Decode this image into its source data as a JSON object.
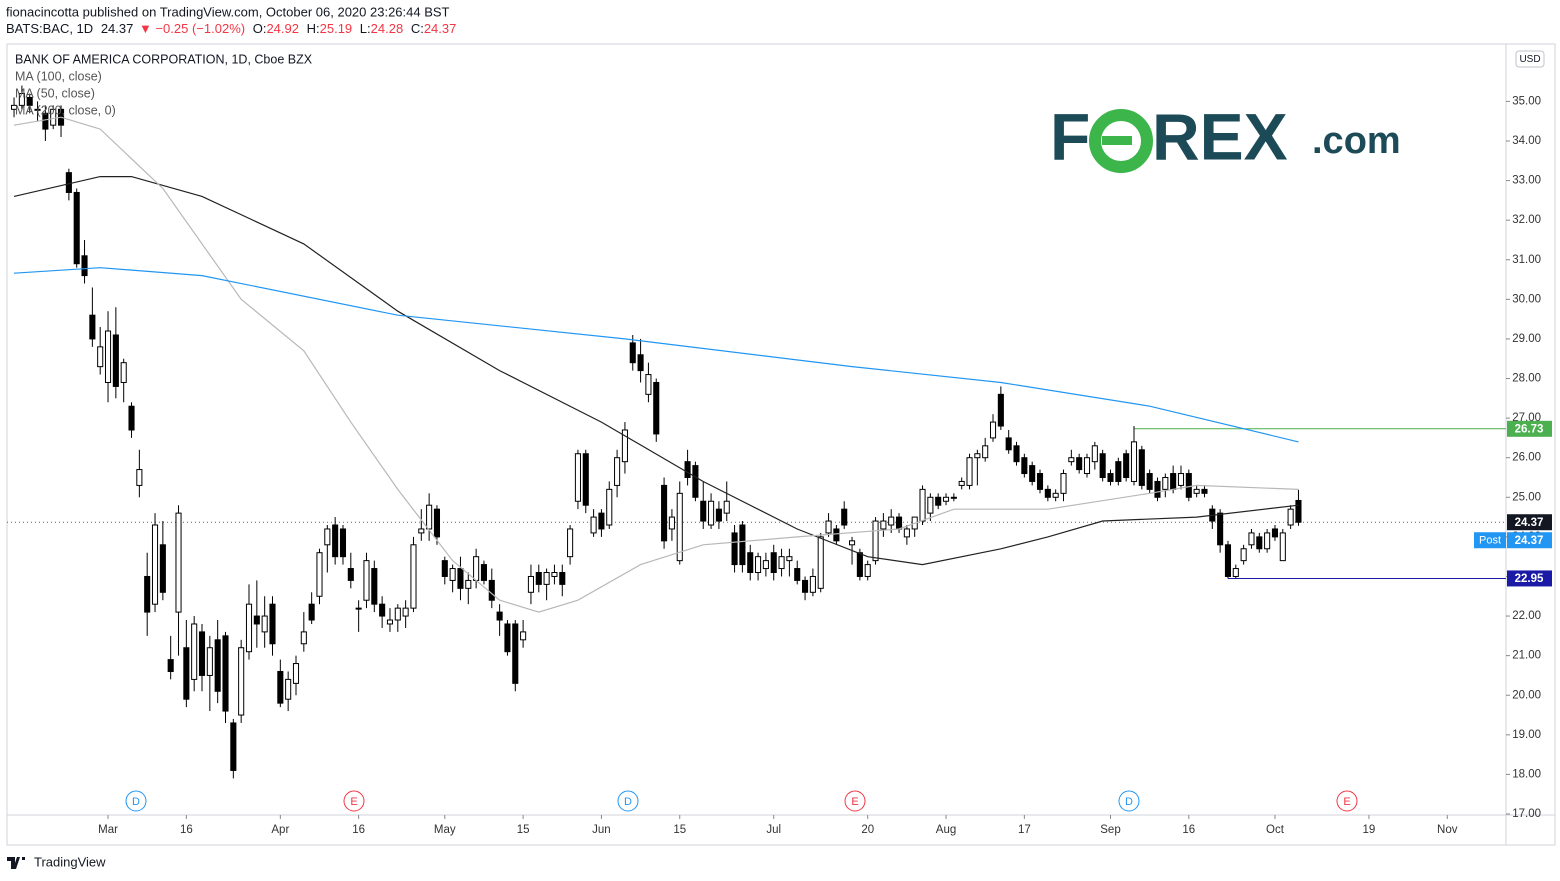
{
  "header": {
    "line1": "fionacincotta published on TradingView.com, October 06, 2020 23:26:44 BST",
    "symbol": "BATS:BAC, 1D",
    "last": 24.37,
    "change": "▼ −0.25 (−1.02%)",
    "quote": [
      {
        "label": "O:",
        "value": 24.92
      },
      {
        "label": "H:",
        "value": 25.19
      },
      {
        "label": "L:",
        "value": 24.28
      },
      {
        "label": "C:",
        "value": 24.37
      }
    ]
  },
  "logo": {
    "left": "F",
    "right": "REX",
    "suffix": ".com"
  },
  "footer": {
    "brand": "TradingView"
  },
  "chart_data": {
    "type": "candlestick",
    "title": "BANK OF AMERICA CORPORATION, 1D, Cboe BZX",
    "currency": "USD",
    "up_color": "#ffffff",
    "down_color": "#000000",
    "xlim": [
      -0.9,
      190.5
    ],
    "ylim": [
      17,
      36.45
    ],
    "xticks": [
      {
        "value": 12,
        "label": "Mar"
      },
      {
        "value": 22,
        "label": "16"
      },
      {
        "value": 34,
        "label": "Apr"
      },
      {
        "value": 44,
        "label": "16"
      },
      {
        "value": 55,
        "label": "May"
      },
      {
        "value": 65,
        "label": "15"
      },
      {
        "value": 75,
        "label": "Jun"
      },
      {
        "value": 85,
        "label": "15"
      },
      {
        "value": 97,
        "label": "Jul"
      },
      {
        "value": 109,
        "label": "20"
      },
      {
        "value": 119,
        "label": "Aug"
      },
      {
        "value": 129,
        "label": "17"
      },
      {
        "value": 140,
        "label": "Sep"
      },
      {
        "value": 150,
        "label": "16"
      },
      {
        "value": 161,
        "label": "Oct"
      },
      {
        "value": 173,
        "label": "19"
      },
      {
        "value": 183,
        "label": "Nov"
      }
    ],
    "yticks": [
      {
        "value": 17,
        "label": "17.00"
      },
      {
        "value": 18,
        "label": "18.00"
      },
      {
        "value": 19,
        "label": "19.00"
      },
      {
        "value": 20,
        "label": "20.00"
      },
      {
        "value": 21,
        "label": "21.00"
      },
      {
        "value": 22,
        "label": "22.00"
      },
      {
        "value": 23,
        "label": "23.00"
      },
      {
        "value": 24,
        "label": "24.00"
      },
      {
        "value": 25,
        "label": "25.00"
      },
      {
        "value": 26,
        "label": "26.00"
      },
      {
        "value": 27,
        "label": "27.00"
      },
      {
        "value": 28,
        "label": "28.00"
      },
      {
        "value": 29,
        "label": "29.00"
      },
      {
        "value": 30,
        "label": "30.00"
      },
      {
        "value": 31,
        "label": "31.00"
      },
      {
        "value": 32,
        "label": "32.00"
      },
      {
        "value": 33,
        "label": "33.00"
      },
      {
        "value": 34,
        "label": "34.00"
      },
      {
        "value": 35,
        "label": "35.00"
      }
    ],
    "ohlc": [
      [
        34.8,
        35.1,
        34.6,
        34.9
      ],
      [
        34.9,
        35.4,
        34.8,
        35.2
      ],
      [
        35.1,
        35.2,
        34.7,
        34.9
      ],
      [
        34.8,
        35.0,
        34.5,
        34.8
      ],
      [
        34.7,
        34.9,
        34.0,
        34.3
      ],
      [
        34.4,
        34.9,
        34.3,
        34.8
      ],
      [
        34.8,
        34.9,
        34.1,
        34.4
      ],
      [
        33.2,
        33.3,
        32.5,
        32.7
      ],
      [
        32.7,
        32.8,
        30.8,
        30.9
      ],
      [
        31.1,
        31.5,
        30.4,
        30.6
      ],
      [
        29.6,
        30.3,
        28.8,
        29.0
      ],
      [
        28.3,
        29.3,
        28.1,
        28.8
      ],
      [
        27.9,
        29.7,
        27.4,
        29.2
      ],
      [
        29.1,
        29.8,
        27.5,
        27.8
      ],
      [
        27.9,
        28.5,
        27.4,
        28.4
      ],
      [
        27.3,
        27.4,
        26.5,
        26.7
      ],
      [
        25.3,
        26.2,
        25.0,
        25.7
      ],
      [
        23.0,
        23.6,
        21.5,
        22.1
      ],
      [
        22.3,
        24.6,
        22.1,
        24.3
      ],
      [
        23.8,
        24.4,
        22.4,
        22.6
      ],
      [
        20.9,
        21.5,
        20.4,
        20.6
      ],
      [
        22.1,
        24.8,
        21.0,
        24.6
      ],
      [
        21.2,
        21.9,
        19.7,
        19.9
      ],
      [
        20.4,
        22.0,
        20.1,
        21.8
      ],
      [
        21.6,
        21.8,
        20.1,
        20.5
      ],
      [
        20.5,
        21.5,
        19.6,
        21.2
      ],
      [
        21.4,
        21.9,
        19.8,
        20.1
      ],
      [
        21.5,
        21.6,
        19.3,
        19.6
      ],
      [
        19.3,
        19.4,
        17.9,
        18.1
      ],
      [
        19.5,
        21.4,
        19.3,
        21.2
      ],
      [
        21.1,
        22.8,
        20.9,
        22.3
      ],
      [
        22.0,
        22.9,
        21.2,
        21.8
      ],
      [
        21.6,
        22.5,
        21.2,
        22.0
      ],
      [
        22.3,
        22.5,
        21.0,
        21.3
      ],
      [
        20.6,
        20.9,
        19.7,
        19.8
      ],
      [
        19.9,
        20.6,
        19.6,
        20.4
      ],
      [
        20.3,
        21.0,
        20.0,
        20.8
      ],
      [
        21.3,
        22.1,
        21.1,
        21.6
      ],
      [
        22.3,
        22.6,
        21.8,
        21.9
      ],
      [
        22.5,
        23.7,
        22.3,
        23.6
      ],
      [
        23.8,
        24.3,
        23.1,
        24.2
      ],
      [
        24.3,
        24.5,
        23.3,
        23.5
      ],
      [
        24.2,
        24.3,
        23.3,
        23.5
      ],
      [
        23.2,
        23.6,
        22.7,
        22.9
      ],
      [
        22.2,
        22.4,
        21.6,
        22.2
      ],
      [
        22.4,
        23.6,
        22.2,
        23.4
      ],
      [
        23.2,
        23.4,
        22.1,
        22.3
      ],
      [
        22.3,
        22.5,
        21.7,
        22.0
      ],
      [
        21.8,
        22.2,
        21.6,
        21.9
      ],
      [
        21.9,
        22.3,
        21.6,
        22.2
      ],
      [
        22.0,
        22.4,
        21.7,
        22.2
      ],
      [
        22.2,
        24.0,
        22.1,
        23.8
      ],
      [
        24.1,
        24.7,
        23.9,
        24.2
      ],
      [
        24.2,
        25.1,
        23.9,
        24.8
      ],
      [
        24.7,
        24.8,
        23.8,
        24.0
      ],
      [
        23.4,
        23.5,
        22.8,
        23.0
      ],
      [
        22.9,
        23.3,
        22.6,
        23.2
      ],
      [
        23.2,
        23.5,
        22.4,
        22.7
      ],
      [
        22.7,
        23.1,
        22.3,
        22.9
      ],
      [
        22.9,
        23.7,
        22.7,
        23.5
      ],
      [
        23.3,
        23.4,
        22.8,
        22.9
      ],
      [
        22.9,
        23.2,
        22.2,
        22.4
      ],
      [
        22.1,
        22.3,
        21.5,
        21.9
      ],
      [
        21.8,
        21.9,
        21.0,
        21.1
      ],
      [
        21.8,
        21.9,
        20.1,
        20.3
      ],
      [
        21.4,
        21.9,
        21.2,
        21.6
      ],
      [
        22.6,
        23.3,
        22.3,
        23.0
      ],
      [
        23.1,
        23.3,
        22.6,
        22.8
      ],
      [
        22.8,
        23.2,
        22.4,
        23.1
      ],
      [
        23.0,
        23.3,
        22.8,
        23.1
      ],
      [
        23.1,
        23.3,
        22.5,
        22.8
      ],
      [
        23.5,
        24.3,
        23.3,
        24.2
      ],
      [
        24.9,
        26.2,
        24.7,
        26.1
      ],
      [
        26.1,
        26.2,
        24.6,
        24.8
      ],
      [
        24.1,
        24.7,
        24.0,
        24.5
      ],
      [
        24.6,
        24.7,
        24.0,
        24.2
      ],
      [
        24.3,
        25.4,
        24.2,
        25.2
      ],
      [
        25.3,
        26.2,
        25.0,
        26.0
      ],
      [
        25.9,
        26.9,
        25.6,
        26.7
      ],
      [
        28.9,
        29.1,
        28.2,
        28.4
      ],
      [
        28.6,
        29.0,
        27.9,
        28.2
      ],
      [
        27.6,
        28.4,
        27.4,
        28.1
      ],
      [
        27.9,
        28.0,
        26.4,
        26.6
      ],
      [
        25.3,
        25.5,
        23.7,
        23.9
      ],
      [
        24.2,
        24.7,
        23.9,
        24.5
      ],
      [
        23.4,
        25.4,
        23.3,
        25.1
      ],
      [
        25.9,
        26.2,
        25.3,
        25.5
      ],
      [
        25.8,
        25.9,
        24.9,
        25.0
      ],
      [
        24.9,
        25.4,
        24.2,
        24.4
      ],
      [
        24.3,
        25.1,
        24.2,
        24.9
      ],
      [
        24.7,
        24.9,
        24.2,
        24.4
      ],
      [
        24.6,
        25.4,
        24.4,
        24.9
      ],
      [
        24.1,
        24.3,
        23.1,
        23.3
      ],
      [
        24.3,
        24.4,
        23.1,
        23.3
      ],
      [
        23.6,
        23.8,
        22.9,
        23.1
      ],
      [
        23.1,
        23.6,
        22.9,
        23.5
      ],
      [
        23.2,
        23.6,
        23.0,
        23.4
      ],
      [
        23.6,
        23.8,
        22.9,
        23.1
      ],
      [
        23.2,
        23.7,
        23.0,
        23.5
      ],
      [
        23.4,
        23.7,
        23.0,
        23.5
      ],
      [
        23.2,
        23.4,
        22.8,
        22.9
      ],
      [
        22.9,
        23.0,
        22.4,
        22.6
      ],
      [
        22.6,
        23.2,
        22.5,
        23.0
      ],
      [
        22.7,
        24.1,
        22.6,
        24.0
      ],
      [
        24.1,
        24.6,
        24.0,
        24.4
      ],
      [
        24.2,
        24.3,
        23.8,
        23.9
      ],
      [
        24.7,
        24.9,
        24.2,
        24.3
      ],
      [
        23.8,
        24.0,
        23.3,
        23.9
      ],
      [
        23.6,
        23.7,
        22.9,
        23.0
      ],
      [
        23.0,
        23.4,
        22.9,
        23.3
      ],
      [
        23.4,
        24.5,
        23.3,
        24.4
      ],
      [
        24.2,
        24.6,
        24.0,
        24.4
      ],
      [
        24.3,
        24.7,
        24.1,
        24.5
      ],
      [
        24.5,
        24.6,
        24.1,
        24.2
      ],
      [
        24.0,
        24.3,
        23.8,
        24.2
      ],
      [
        24.2,
        24.5,
        24.0,
        24.5
      ],
      [
        24.4,
        25.3,
        24.3,
        25.2
      ],
      [
        24.6,
        25.1,
        24.4,
        25.0
      ],
      [
        25.0,
        25.1,
        24.7,
        24.8
      ],
      [
        24.9,
        25.1,
        24.8,
        25.0
      ],
      [
        25.0,
        25.1,
        24.9,
        25.0
      ],
      [
        25.3,
        25.5,
        25.2,
        25.4
      ],
      [
        25.3,
        26.1,
        25.2,
        26.0
      ],
      [
        26.0,
        26.2,
        25.3,
        26.1
      ],
      [
        26.0,
        26.5,
        25.9,
        26.3
      ],
      [
        26.5,
        27.1,
        26.4,
        26.9
      ],
      [
        27.6,
        27.8,
        26.7,
        26.8
      ],
      [
        26.5,
        26.7,
        26.1,
        26.2
      ],
      [
        26.3,
        26.4,
        25.8,
        25.9
      ],
      [
        26.0,
        26.1,
        25.5,
        25.6
      ],
      [
        25.8,
        25.9,
        25.3,
        25.4
      ],
      [
        25.6,
        25.7,
        25.1,
        25.2
      ],
      [
        25.2,
        25.3,
        24.9,
        25.0
      ],
      [
        25.0,
        25.2,
        24.9,
        25.1
      ],
      [
        25.1,
        25.7,
        24.9,
        25.6
      ],
      [
        25.9,
        26.2,
        25.8,
        26.0
      ],
      [
        26.0,
        26.1,
        25.6,
        25.7
      ],
      [
        25.6,
        26.1,
        25.5,
        26.0
      ],
      [
        25.9,
        26.4,
        25.7,
        26.3
      ],
      [
        26.1,
        26.2,
        25.4,
        25.5
      ],
      [
        25.6,
        25.7,
        25.3,
        25.4
      ],
      [
        25.9,
        26.0,
        25.3,
        25.4
      ],
      [
        26.1,
        26.2,
        25.4,
        25.5
      ],
      [
        25.4,
        26.8,
        25.3,
        26.4
      ],
      [
        26.2,
        26.3,
        25.2,
        25.3
      ],
      [
        25.6,
        25.7,
        25.1,
        25.2
      ],
      [
        25.4,
        25.5,
        24.9,
        25.0
      ],
      [
        25.2,
        25.6,
        25.0,
        25.5
      ],
      [
        25.6,
        25.8,
        25.1,
        25.2
      ],
      [
        25.3,
        25.8,
        25.2,
        25.6
      ],
      [
        25.6,
        25.7,
        24.9,
        25.0
      ],
      [
        25.1,
        25.3,
        25.0,
        25.2
      ],
      [
        25.2,
        25.3,
        25.0,
        25.1
      ],
      [
        24.7,
        24.8,
        24.2,
        24.4
      ],
      [
        24.6,
        24.7,
        23.6,
        23.8
      ],
      [
        23.8,
        23.9,
        22.95,
        23.0
      ],
      [
        23.0,
        23.3,
        22.95,
        23.2
      ],
      [
        23.4,
        23.8,
        23.3,
        23.7
      ],
      [
        23.8,
        24.2,
        23.7,
        24.1
      ],
      [
        24.0,
        24.1,
        23.6,
        23.7
      ],
      [
        23.7,
        24.2,
        23.6,
        24.1
      ],
      [
        24.2,
        24.3,
        23.9,
        24.0
      ],
      [
        23.4,
        24.2,
        23.4,
        24.1
      ],
      [
        24.3,
        24.8,
        24.2,
        24.7
      ],
      [
        24.92,
        25.19,
        24.28,
        24.37
      ]
    ],
    "series": [
      {
        "name": "MA (100, close)",
        "color": "#222222",
        "x": [
          0,
          11,
          15,
          24,
          37,
          49,
          62,
          75,
          88,
          100,
          109,
          116,
          126,
          132,
          139,
          151,
          164
        ],
        "values": [
          32.6,
          33.1,
          33.1,
          32.6,
          31.4,
          29.7,
          28.2,
          26.9,
          25.4,
          24.2,
          23.5,
          23.3,
          23.7,
          24.0,
          24.4,
          24.5,
          24.8
        ]
      },
      {
        "name": "MA (50, close)",
        "color": "#b8b8b8",
        "x": [
          0,
          6,
          11,
          19,
          29,
          37,
          43,
          49,
          56,
          62,
          67,
          72,
          80,
          88,
          100,
          113,
          120,
          132,
          145,
          151,
          164
        ],
        "values": [
          34.4,
          34.6,
          34.3,
          32.8,
          30.0,
          28.7,
          26.9,
          25.2,
          23.4,
          22.4,
          22.1,
          22.4,
          23.3,
          23.8,
          24.0,
          24.2,
          24.7,
          24.7,
          25.1,
          25.3,
          25.2
        ]
      },
      {
        "name": "MA (200, close, 0)",
        "color": "#2196f3",
        "x": [
          0,
          11,
          24,
          49,
          78,
          107,
          126,
          145,
          164
        ],
        "values": [
          30.66,
          30.8,
          30.6,
          29.6,
          29.0,
          28.3,
          27.9,
          27.3,
          26.4
        ]
      }
    ],
    "price_labels": [
      {
        "value": 26.73,
        "color": "#4caf50"
      },
      {
        "value": 24.37,
        "color": "#131722"
      },
      {
        "label": "Post",
        "value": 24.37,
        "color": "#2196f3"
      },
      {
        "value": 22.95,
        "color": "#1a1aa6"
      }
    ],
    "events": [
      {
        "label": "D",
        "color": "#2196f3"
      },
      {
        "label": "E",
        "color": "#f23645"
      },
      {
        "label": "D",
        "color": "#2196f3"
      },
      {
        "label": "E",
        "color": "#f23645"
      },
      {
        "label": "D",
        "color": "#2196f3"
      },
      {
        "label": "E",
        "color": "#f23645"
      }
    ]
  }
}
